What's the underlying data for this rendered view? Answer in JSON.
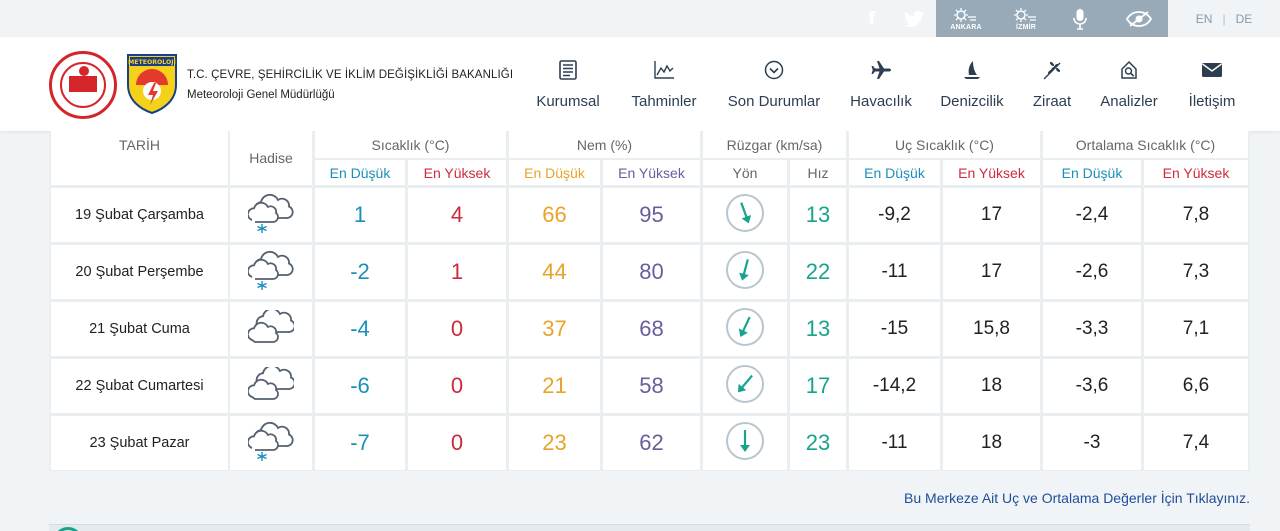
{
  "topbar": {
    "social": [
      {
        "name": "facebook-icon",
        "glyph": "f"
      },
      {
        "name": "twitter-icon",
        "glyph": "t"
      }
    ],
    "tools": [
      {
        "name": "ankara-weather-icon",
        "label": "ANKARA"
      },
      {
        "name": "izmir-weather-icon",
        "label": "İZMİR"
      },
      {
        "name": "microphone-icon",
        "label": ""
      },
      {
        "name": "accessibility-eye-icon",
        "label": ""
      }
    ],
    "langs": {
      "en": "EN",
      "separator": "|",
      "de": "DE"
    }
  },
  "header": {
    "org_line1": "T.C. ÇEVRE, ŞEHİRCİLİK VE İKLİM DEĞİŞİKLİĞİ BAKANLIĞI",
    "org_line2": "Meteoroloji Genel Müdürlüğü",
    "logo_text": "METEOROLOJİ",
    "nav": [
      {
        "label": "Kurumsal",
        "icon": "document-icon"
      },
      {
        "label": "Tahminler",
        "icon": "chart-icon"
      },
      {
        "label": "Son Durumlar",
        "icon": "chevron-circle-icon"
      },
      {
        "label": "Havacılık",
        "icon": "airplane-icon"
      },
      {
        "label": "Denizcilik",
        "icon": "sail-icon"
      },
      {
        "label": "Ziraat",
        "icon": "wheat-icon"
      },
      {
        "label": "Analizler",
        "icon": "analysis-icon"
      },
      {
        "label": "İletişim",
        "icon": "envelope-icon"
      }
    ]
  },
  "table": {
    "headers": {
      "date": "TARİH",
      "event": "Hadise",
      "temp": "Sıcaklık (°C)",
      "humidity": "Nem (%)",
      "wind": "Rüzgar (km/sa)",
      "extreme": "Uç Sıcaklık (°C)",
      "average": "Ortalama Sıcaklık (°C)"
    },
    "subheaders": {
      "min": "En Düşük",
      "max": "En Yüksek",
      "direction": "Yön",
      "speed": "Hız"
    },
    "rows": [
      {
        "date": "19 Şubat Çarşamba",
        "event": "snow",
        "tmin": "1",
        "tmax": "4",
        "hmin": "66",
        "hmax": "95",
        "wind_dir_deg": 340,
        "wind_speed": "13",
        "emin": "-9,2",
        "emax": "17",
        "amin": "-2,4",
        "amax": "7,8"
      },
      {
        "date": "20 Şubat Perşembe",
        "event": "snow",
        "tmin": "-2",
        "tmax": "1",
        "hmin": "44",
        "hmax": "80",
        "wind_dir_deg": 15,
        "wind_speed": "22",
        "emin": "-11",
        "emax": "17",
        "amin": "-2,6",
        "amax": "7,3"
      },
      {
        "date": "21 Şubat Cuma",
        "event": "cloudy",
        "tmin": "-4",
        "tmax": "0",
        "hmin": "37",
        "hmax": "68",
        "wind_dir_deg": 25,
        "wind_speed": "13",
        "emin": "-15",
        "emax": "15,8",
        "amin": "-3,3",
        "amax": "7,1"
      },
      {
        "date": "22 Şubat Cumartesi",
        "event": "cloudy",
        "tmin": "-6",
        "tmax": "0",
        "hmin": "21",
        "hmax": "58",
        "wind_dir_deg": 40,
        "wind_speed": "17",
        "emin": "-14,2",
        "emax": "18",
        "amin": "-3,6",
        "amax": "6,6"
      },
      {
        "date": "23 Şubat Pazar",
        "event": "snow",
        "tmin": "-7",
        "tmax": "0",
        "hmin": "23",
        "hmax": "62",
        "wind_dir_deg": 0,
        "wind_speed": "23",
        "emin": "-11",
        "emax": "18",
        "amin": "-3",
        "amax": "7,4"
      }
    ]
  },
  "note": "Bu Merkeze Ait Uç ve Ortalama Değerler İçin Tıklayınız.",
  "colors": {
    "accent_blue": "#1b8fba",
    "accent_red": "#cc2b3c",
    "accent_orange": "#e8a32a",
    "accent_purple": "#6a5c9e",
    "accent_teal": "#18a38d"
  }
}
